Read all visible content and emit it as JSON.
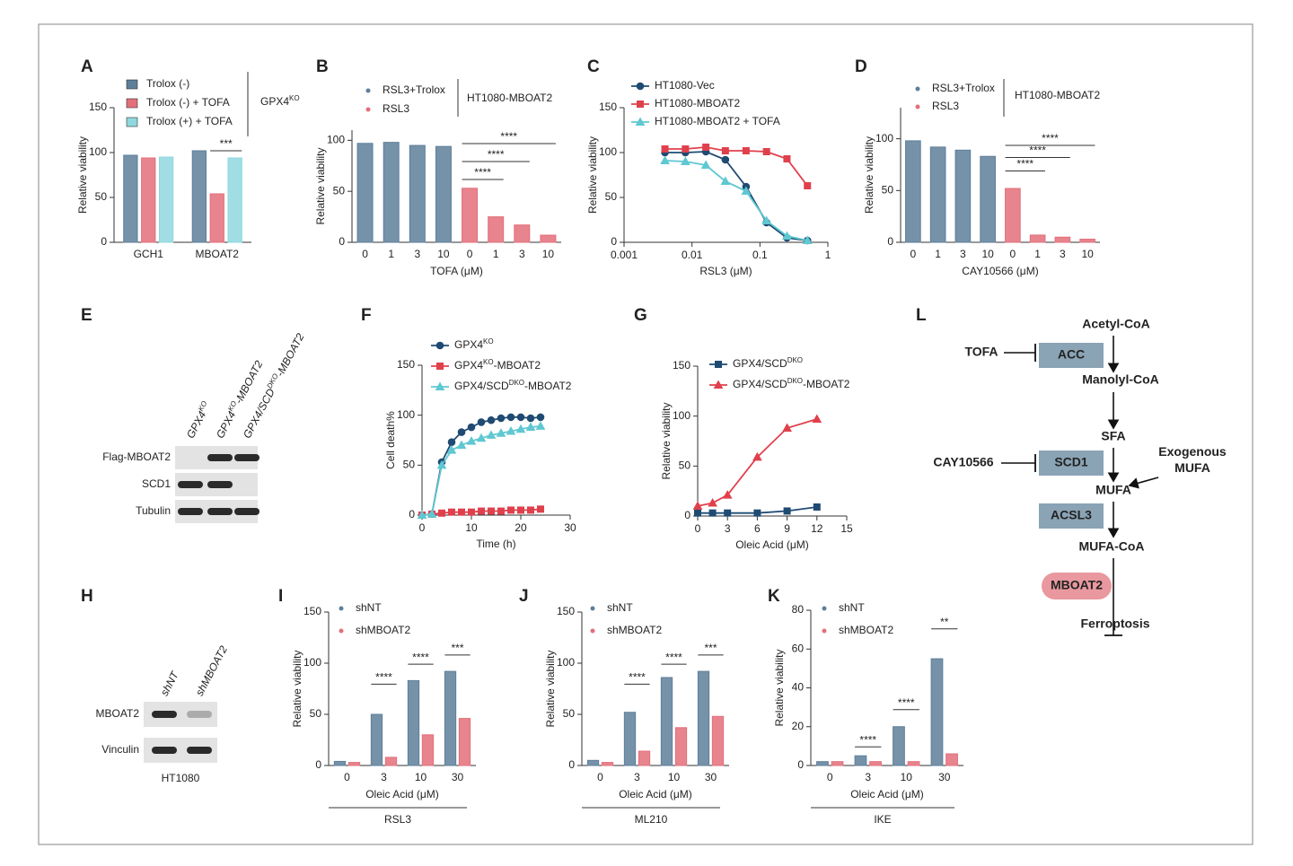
{
  "chart_data": [
    {
      "panel": "A",
      "type": "bar",
      "ylabel": "Relative viability",
      "categories": [
        "GCH1",
        "MBOAT2"
      ],
      "series": [
        {
          "name": "Trolox (-)",
          "color": "#5e7f9a",
          "values": [
            97,
            102
          ]
        },
        {
          "name": "Trolox (-) + TOFA",
          "color": "#e36f7a",
          "values": [
            94,
            54
          ]
        },
        {
          "name": "Trolox (+) + TOFA",
          "color": "#8fd8de",
          "values": [
            95,
            94
          ]
        }
      ],
      "group_label": [
        "GPX4",
        "KO"
      ],
      "significance": [
        "***"
      ],
      "ylim": [
        0,
        150
      ],
      "yticks": [
        0,
        50,
        100,
        150
      ]
    },
    {
      "panel": "B",
      "type": "bar",
      "ylabel": "Relative viability",
      "xlabel": "TOFA (μM)",
      "categories": [
        "0",
        "1",
        "3",
        "10",
        "0",
        "1",
        "3",
        "10"
      ],
      "series": [
        {
          "name": "RSL3+Trolox",
          "color": "#5e7f9a",
          "values": [
            97,
            98,
            95,
            94,
            null,
            null,
            null,
            null
          ]
        },
        {
          "name": "RSL3",
          "color": "#e36f7a",
          "values": [
            null,
            null,
            null,
            null,
            53,
            25,
            17,
            7
          ]
        }
      ],
      "group_label": "HT1080-MBOAT2",
      "significance": [
        "****",
        "****",
        "****"
      ],
      "ylim": [
        0,
        110
      ],
      "yticks": [
        0,
        50,
        100
      ]
    },
    {
      "panel": "C",
      "type": "line",
      "xscale": "log",
      "ylabel": "Relative viability",
      "xlabel": "RSL3 (μM)",
      "x": [
        0.004,
        0.008,
        0.016,
        0.031,
        0.0625,
        0.125,
        0.25,
        0.5
      ],
      "series": [
        {
          "name": "HT1080-Vec",
          "color": "#1f4b73",
          "marker": "circle",
          "values": [
            100,
            100,
            101,
            92,
            62,
            22,
            5,
            2
          ]
        },
        {
          "name": "HT1080-MBOAT2",
          "color": "#e0404c",
          "marker": "square",
          "values": [
            104,
            104,
            106,
            102,
            102,
            101,
            93,
            63
          ]
        },
        {
          "name": "HT1080-MBOAT2 + TOFA",
          "color": "#5fc8d2",
          "marker": "triangle",
          "values": [
            91,
            90,
            86,
            68,
            57,
            24,
            7,
            2
          ]
        }
      ],
      "xlim": [
        0.001,
        1
      ],
      "xticks": [
        0.001,
        0.01,
        0.1,
        1
      ],
      "ylim": [
        0,
        150
      ],
      "yticks": [
        0,
        50,
        100,
        150
      ]
    },
    {
      "panel": "D",
      "type": "bar",
      "ylabel": "Relative viability",
      "xlabel": "CAY10566 (μM)",
      "categories": [
        "0",
        "1",
        "3",
        "10",
        "0",
        "1",
        "3",
        "10"
      ],
      "series": [
        {
          "name": "RSL3+Trolox",
          "color": "#5e7f9a",
          "values": [
            98,
            92,
            89,
            83,
            null,
            null,
            null,
            null
          ]
        },
        {
          "name": "RSL3",
          "color": "#e36f7a",
          "values": [
            null,
            null,
            null,
            null,
            52,
            7,
            5,
            3
          ]
        }
      ],
      "group_label": "HT1080-MBOAT2",
      "significance": [
        "****",
        "****",
        "****"
      ],
      "ylim": [
        0,
        130
      ],
      "yticks": [
        0,
        50,
        100
      ]
    },
    {
      "panel": "F",
      "type": "line",
      "ylabel": "Cell death%",
      "xlabel": "Time (h)",
      "x": [
        0,
        2,
        4,
        6,
        8,
        10,
        12,
        14,
        16,
        18,
        20,
        22,
        24
      ],
      "series": [
        {
          "name": [
            "GPX4",
            "KO"
          ],
          "color": "#1f4b73",
          "marker": "circle",
          "values": [
            0,
            1,
            53,
            73,
            83,
            88,
            93,
            95,
            97,
            98,
            98,
            97,
            98
          ]
        },
        {
          "name": [
            "GPX4",
            "KO",
            "-MBOAT2"
          ],
          "color": "#e0404c",
          "marker": "square",
          "values": [
            0,
            1,
            2,
            3,
            3,
            3,
            4,
            4,
            4,
            5,
            5,
            5,
            6
          ]
        },
        {
          "name": [
            "GPX4/SCD",
            "DKO",
            "-MBOAT2"
          ],
          "color": "#5fc8d2",
          "marker": "triangle",
          "values": [
            0,
            1,
            50,
            65,
            70,
            74,
            77,
            80,
            82,
            84,
            86,
            88,
            89
          ]
        }
      ],
      "xlim": [
        0,
        30
      ],
      "xticks": [
        0,
        10,
        20,
        30
      ],
      "ylim": [
        0,
        150
      ],
      "yticks": [
        0,
        50,
        100,
        150
      ]
    },
    {
      "panel": "G",
      "type": "line",
      "ylabel": "Relative viability",
      "xlabel": "Oleic Acid (μM)",
      "x": [
        0,
        1.5,
        3,
        6,
        9,
        12
      ],
      "series": [
        {
          "name": [
            "GPX4/SCD",
            "DKO"
          ],
          "color": "#1f4b73",
          "marker": "square",
          "values": [
            3,
            3,
            3,
            3,
            5,
            9
          ]
        },
        {
          "name": [
            "GPX4/SCD",
            "DKO",
            "-MBOAT2"
          ],
          "color": "#e0404c",
          "marker": "triangle",
          "values": [
            10,
            13,
            21,
            59,
            88,
            97
          ]
        }
      ],
      "xlim": [
        0,
        15
      ],
      "xticks": [
        0,
        3,
        6,
        9,
        12,
        15
      ],
      "ylim": [
        0,
        150
      ],
      "yticks": [
        0,
        50,
        100,
        150
      ]
    },
    {
      "panel": "I",
      "type": "bar",
      "ylabel": "Relative viability",
      "xlabel": "Oleic Acid (μM)",
      "categories": [
        "0",
        "3",
        "10",
        "30"
      ],
      "series": [
        {
          "name": "shNT",
          "color": "#5e7f9a",
          "values": [
            4,
            50,
            83,
            92
          ]
        },
        {
          "name": "shMBOAT2",
          "color": "#e36f7a",
          "values": [
            3,
            8,
            30,
            46
          ]
        }
      ],
      "group_label": "RSL3",
      "significance": [
        "****",
        "****",
        "***"
      ],
      "ylim": [
        0,
        150
      ],
      "yticks": [
        0,
        50,
        100,
        150
      ]
    },
    {
      "panel": "J",
      "type": "bar",
      "ylabel": "Relative viability",
      "xlabel": "Oleic Acid (μM)",
      "categories": [
        "0",
        "3",
        "10",
        "30"
      ],
      "series": [
        {
          "name": "shNT",
          "color": "#5e7f9a",
          "values": [
            5,
            52,
            86,
            92
          ]
        },
        {
          "name": "shMBOAT2",
          "color": "#e36f7a",
          "values": [
            3,
            14,
            37,
            48
          ]
        }
      ],
      "group_label": "ML210",
      "significance": [
        "****",
        "****",
        "***"
      ],
      "ylim": [
        0,
        150
      ],
      "yticks": [
        0,
        50,
        100,
        150
      ]
    },
    {
      "panel": "K",
      "type": "bar",
      "ylabel": "Relative viability",
      "xlabel": "Oleic Acid (μM)",
      "categories": [
        "0",
        "3",
        "10",
        "30"
      ],
      "series": [
        {
          "name": "shNT",
          "color": "#5e7f9a",
          "values": [
            2,
            5,
            20,
            55
          ]
        },
        {
          "name": "shMBOAT2",
          "color": "#e36f7a",
          "values": [
            2,
            2,
            2,
            6
          ]
        }
      ],
      "group_label": "IKE",
      "significance": [
        "****",
        "****",
        "**"
      ],
      "ylim": [
        0,
        80
      ],
      "yticks": [
        0,
        20,
        40,
        60,
        80
      ]
    }
  ],
  "blots": [
    {
      "panel": "E",
      "lanes": [
        [
          "GPX4",
          "KO"
        ],
        [
          "GPX4",
          "KO",
          "-MBOAT2"
        ],
        [
          "GPX4/SCD",
          "DKO",
          "-MBOAT2"
        ]
      ],
      "rows": [
        "Flag-MBOAT2",
        "SCD1",
        "Tubulin"
      ]
    },
    {
      "panel": "H",
      "lanes": [
        [
          "shNT"
        ],
        [
          "shMBOAT2"
        ]
      ],
      "rows": [
        "MBOAT2",
        "Vinculin"
      ],
      "caption": "HT1080"
    }
  ],
  "pathway": {
    "panel": "L",
    "nodes": [
      "Acetyl-CoA",
      "ACC",
      "TOFA",
      "Manolyl-CoA",
      "SFA",
      "SCD1",
      "CAY10566",
      [
        "Exogenous",
        "MUFA"
      ],
      "MUFA",
      "ACSL3",
      "MUFA-CoA",
      "MBOAT2",
      "Ferroptosis"
    ]
  }
}
